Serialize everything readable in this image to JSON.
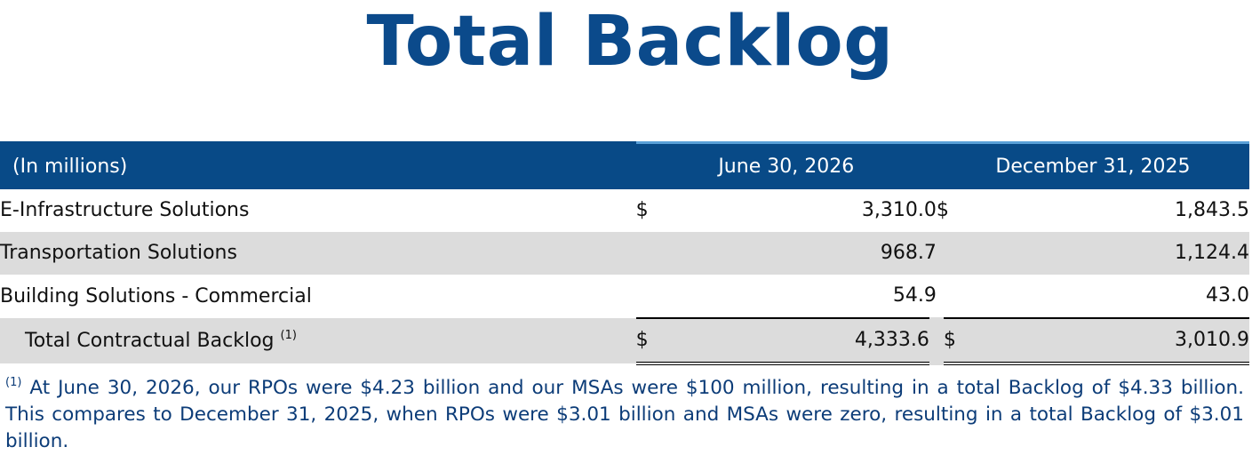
{
  "title": "Total Backlog",
  "table": {
    "header": {
      "label": "(In millions)",
      "col1": "June 30, 2026",
      "col2": "December 31, 2025"
    },
    "rows": [
      {
        "label": "E-Infrastructure Solutions",
        "cur1": "$",
        "v1": "3,310.0",
        "cur2": "$",
        "v2": "1,843.5"
      },
      {
        "label": "Transportation Solutions",
        "cur1": "",
        "v1": "968.7",
        "cur2": "",
        "v2": "1,124.4"
      },
      {
        "label": "Building Solutions - Commercial",
        "cur1": "",
        "v1": "54.9",
        "cur2": "",
        "v2": "43.0"
      }
    ],
    "total": {
      "label": "Total Contractual Backlog",
      "sup": "(1)",
      "cur1": "$",
      "v1": "4,333.6",
      "cur2": "$",
      "v2": "3,010.9"
    }
  },
  "footnote": {
    "marker": "(1)",
    "text": "At June 30, 2026, our RPOs were $4.23 billion and our MSAs were $100 million, resulting in a total Backlog of $4.33 billion. This compares to December 31, 2025, when RPOs were $3.01 billion and MSAs were zero, resulting in a total Backlog of $3.01 billion."
  }
}
